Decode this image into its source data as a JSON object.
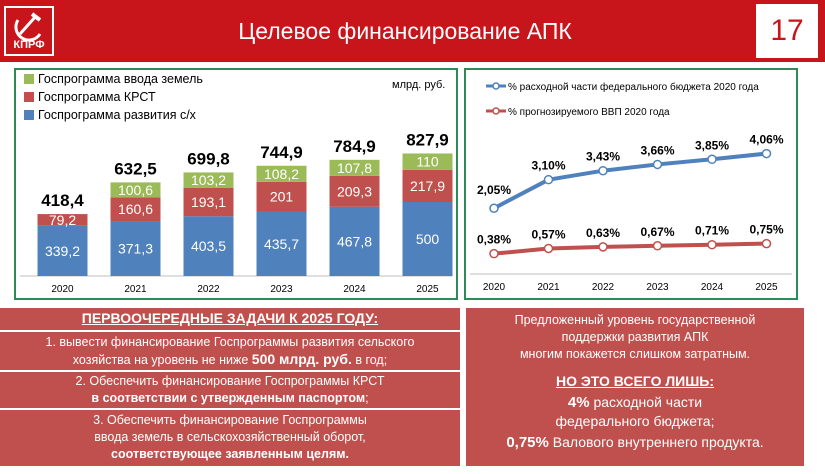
{
  "header": {
    "title": "Целевое финансирование АПК",
    "logo_text": "КПРФ",
    "page_number": "17"
  },
  "colors": {
    "brand": "#c8141b",
    "green": "#9bbb59",
    "red": "#c0504d",
    "blue": "#4f81bd",
    "line_blue": "#4f81bd",
    "line_red": "#c0504d"
  },
  "chart_data": [
    {
      "type": "bar",
      "stacked": true,
      "unit_label": "млрд. руб.",
      "categories": [
        "2020",
        "2021",
        "2022",
        "2023",
        "2024",
        "2025"
      ],
      "series": [
        {
          "name": "Госпрограмма развития с/х",
          "values": [
            339.2,
            371.3,
            403.5,
            435.7,
            467.8,
            500
          ],
          "labels": [
            "339,2",
            "371,3",
            "403,5",
            "435,7",
            "467,8",
            "500"
          ]
        },
        {
          "name": "Госпрограмма КРСТ",
          "values": [
            79.2,
            160.6,
            193.1,
            201,
            209.3,
            217.9
          ],
          "labels": [
            "79,2",
            "160,6",
            "193,1",
            "201",
            "209,3",
            "217,9"
          ]
        },
        {
          "name": "Госпрограмма ввода земель",
          "values": [
            0,
            100.6,
            103.2,
            108.2,
            107.8,
            110
          ],
          "labels": [
            "",
            "100,6",
            "103,2",
            "108,2",
            "107,8",
            "110"
          ]
        }
      ],
      "totals": [
        "418,4",
        "632,5",
        "699,8",
        "744,9",
        "784,9",
        "827,9"
      ],
      "total_values": [
        418.4,
        632.5,
        699.8,
        744.9,
        784.9,
        827.9
      ],
      "legend_position": "top-left",
      "ylim": [
        0,
        900
      ]
    },
    {
      "type": "line",
      "categories": [
        "2020",
        "2021",
        "2022",
        "2023",
        "2024",
        "2025"
      ],
      "series": [
        {
          "name": "% расходной части федерального бюджета 2020 года",
          "values": [
            2.05,
            3.1,
            3.43,
            3.66,
            3.85,
            4.06
          ],
          "labels": [
            "2,05%",
            "3,10%",
            "3,43%",
            "3,66%",
            "3,85%",
            "4,06%"
          ]
        },
        {
          "name": "% прогнозируемого ВВП 2020 года",
          "values": [
            0.38,
            0.57,
            0.63,
            0.67,
            0.71,
            0.75
          ],
          "labels": [
            "0,38%",
            "0,57%",
            "0,63%",
            "0,67%",
            "0,71%",
            "0,75%"
          ]
        }
      ],
      "legend_position": "top",
      "ylim": [
        0,
        4.5
      ]
    }
  ],
  "tasks": {
    "heading": "ПЕРВООЧЕРЕДНЫЕ ЗАДАЧИ К 2025 ГОДУ:",
    "t1_line1": "1. вывести финансирование Госпрограммы развития сельского",
    "t1_line2a": "хозяйства на уровень не ниже ",
    "t1_bold": "500 млрд. руб.",
    "t1_line2b": " в год;",
    "t2_line1": "2. Обеспечить финансирование Госпрограммы КРСТ",
    "t2_line2": "в соответствии с утвержденным паспортом",
    "t2_line2b": ";",
    "t3_line1": "3. Обеспечить финансирование Госпрограммы",
    "t3_line2": "ввода земель в сельскохозяйственный оборот,",
    "t3_line3": "соответствующее заявленным целям."
  },
  "note": {
    "line1": "Предложенный уровень государственной",
    "line2": "поддержки развития АПК",
    "line3": "многим покажется слишком затратным.",
    "heading": "НО ЭТО ВСЕГО ЛИШЬ:",
    "p1_bold": "4%",
    "p1_rest": " расходной части",
    "p2": "федерального бюджета;",
    "p3_bold": "0,75%",
    "p3_rest": " Валового внутреннего продукта."
  }
}
